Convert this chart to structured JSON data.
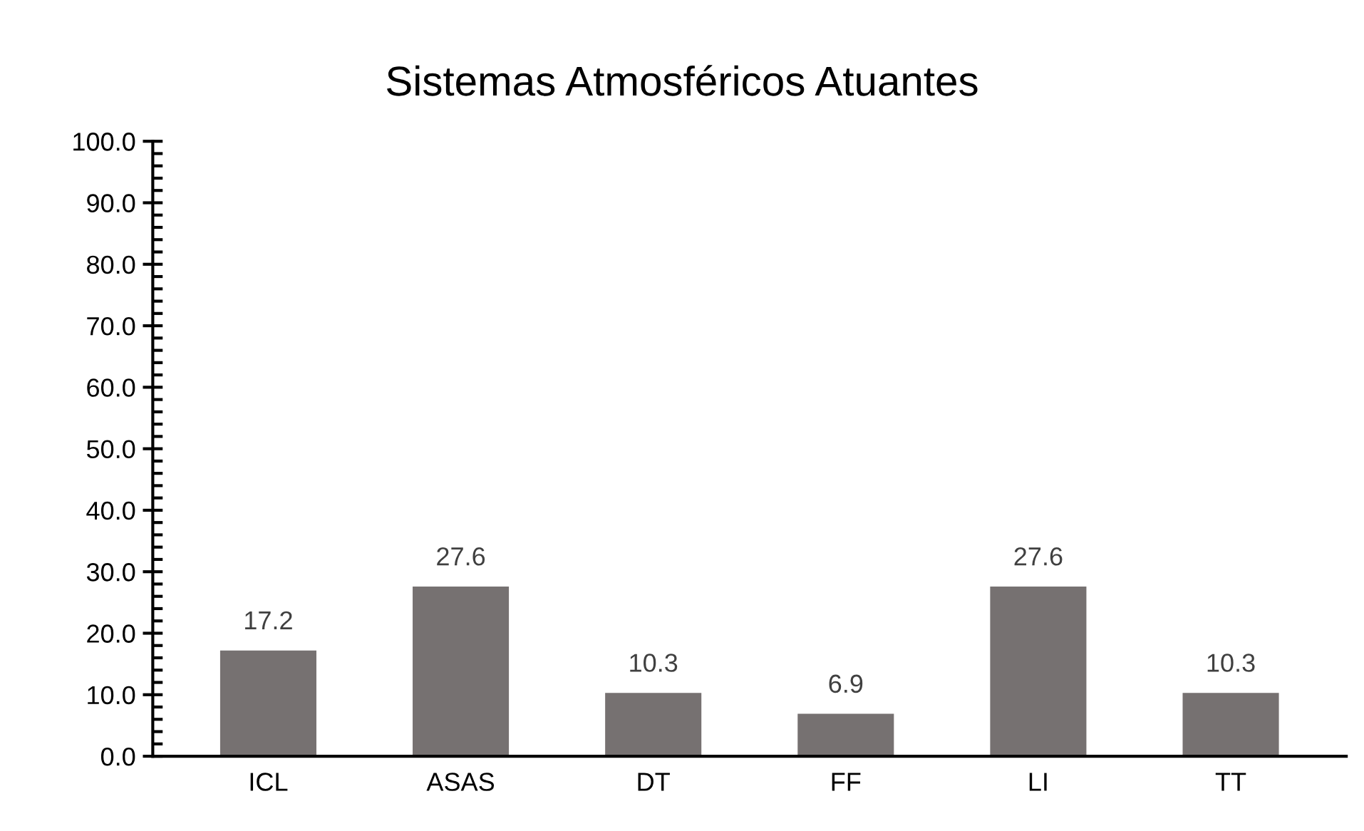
{
  "chart_data": {
    "type": "bar",
    "title": "Sistemas Atmosféricos Atuantes",
    "categories": [
      "ICL",
      "ASAS",
      "DT",
      "FF",
      "LI",
      "TT"
    ],
    "values": [
      17.2,
      27.6,
      10.3,
      6.9,
      27.6,
      10.3
    ],
    "color": "#767171",
    "data_labels": true,
    "ylim": [
      0,
      100
    ],
    "yticks": [
      {
        "value": 0,
        "label": "0.0"
      },
      {
        "value": 10,
        "label": "10.0"
      },
      {
        "value": 20,
        "label": "20.0"
      },
      {
        "value": 30,
        "label": "30.0"
      },
      {
        "value": 40,
        "label": "40.0"
      },
      {
        "value": 50,
        "label": "50.0"
      },
      {
        "value": 60,
        "label": "60.0"
      },
      {
        "value": 70,
        "label": "70.0"
      },
      {
        "value": 80,
        "label": "80.0"
      },
      {
        "value": 90,
        "label": "90.0"
      },
      {
        "value": 100,
        "label": "100.0"
      }
    ],
    "grid": false
  }
}
